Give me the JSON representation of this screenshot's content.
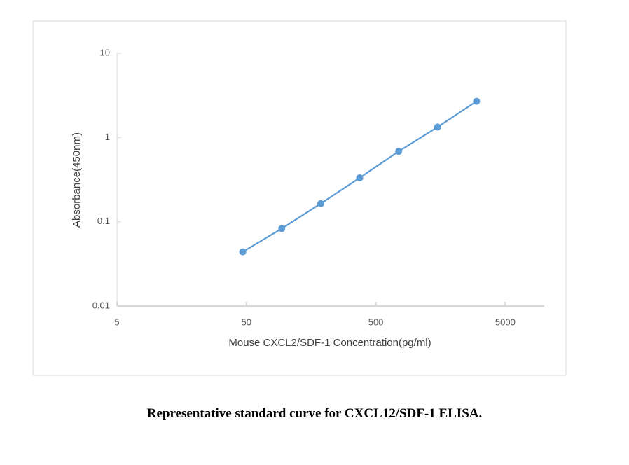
{
  "chart_data": {
    "type": "line",
    "x_label": "Mouse CXCL2/SDF-1 Concentration(pg/ml)",
    "y_label": "Absorbance(450nm)",
    "caption": "Representative standard curve for CXCL12/SDF-1 ELISA.",
    "x": [
      46.875,
      93.75,
      187.5,
      375,
      750,
      1500,
      3000
    ],
    "values": [
      0.044,
      0.083,
      0.164,
      0.332,
      0.684,
      1.33,
      2.69
    ],
    "color": "#5b9bd5",
    "xlog": true,
    "ylog": true,
    "xlim": [
      5,
      10000
    ],
    "ylim": [
      0.01,
      10
    ],
    "xticks": [
      5,
      50,
      500,
      5000
    ],
    "yticks": [
      0.01,
      0.1,
      1,
      10
    ],
    "grid": false
  }
}
